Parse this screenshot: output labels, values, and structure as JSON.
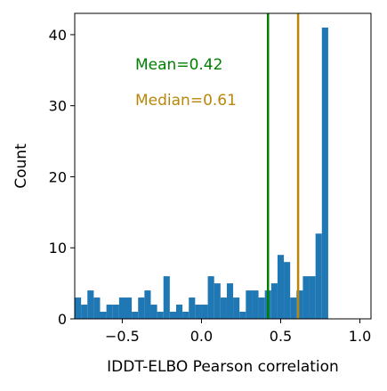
{
  "chart_data": {
    "type": "bar",
    "subtype": "histogram",
    "xlabel": "IDDT-ELBO Pearson correlation",
    "ylabel": "Count",
    "xlim": [
      -0.8,
      1.07
    ],
    "ylim": [
      0,
      43
    ],
    "xticks": [
      -0.5,
      0.0,
      0.5,
      1.0
    ],
    "xtick_labels": [
      "−0.5",
      "0.0",
      "0.5",
      "1.0"
    ],
    "yticks": [
      0,
      10,
      20,
      30,
      40
    ],
    "bin_start": -0.8,
    "bin_width": 0.04,
    "counts": [
      3,
      2,
      4,
      3,
      1,
      2,
      2,
      3,
      3,
      1,
      3,
      4,
      2,
      1,
      6,
      1,
      2,
      1,
      3,
      2,
      2,
      6,
      5,
      3,
      5,
      3,
      1,
      4,
      4,
      3,
      4,
      5,
      9,
      8,
      3,
      4,
      6,
      6,
      12,
      41
    ],
    "bar_color": "#1f77b4",
    "grid": false,
    "vlines": [
      {
        "label": "Mean=0.42",
        "x": 0.42,
        "color": "#008000"
      },
      {
        "label": "Median=0.61",
        "x": 0.61,
        "color": "#b8860b"
      }
    ]
  }
}
